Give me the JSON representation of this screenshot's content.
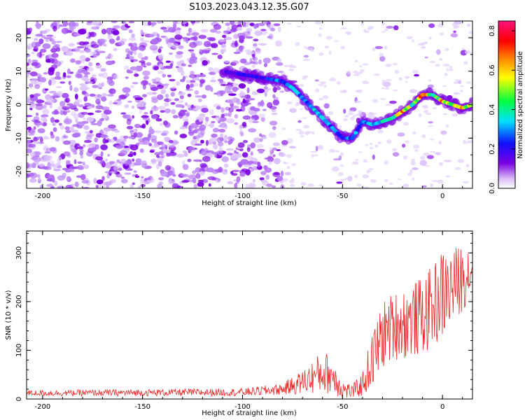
{
  "title": "S103.2023.043.12.35.G07",
  "chart_data": [
    {
      "type": "heatmap",
      "xlabel": "Height of straight line (km)",
      "ylabel": "Frequency (Hz)",
      "xlim": [
        -208,
        15
      ],
      "ylim": [
        -25,
        25
      ],
      "xticks": [
        -200,
        -150,
        -100,
        -50,
        0
      ],
      "xtick_labels": [
        "-200",
        "-150",
        "-100",
        "-50",
        "0"
      ],
      "yticks": [
        -20,
        -10,
        0,
        10,
        20
      ],
      "ytick_labels": [
        "-20",
        "-10",
        "0",
        "10",
        "20"
      ],
      "colorbar": {
        "label": "Normalized spectral amplitude",
        "range": [
          0,
          0.85
        ],
        "ticks": [
          0.0,
          0.2,
          0.4,
          0.6,
          0.8
        ],
        "tick_labels": [
          "0.0",
          "0.2",
          "0.4",
          "0.6",
          "0.8"
        ],
        "colormap": [
          "#ffffff",
          "#7a00e0",
          "#1010ff",
          "#00e0ff",
          "#00ff40",
          "#ffff00",
          "#ff8000",
          "#ff0000",
          "#ff1080"
        ]
      },
      "ridge": {
        "x": [
          -110,
          -100,
          -90,
          -80,
          -75,
          -70,
          -65,
          -60,
          -55,
          -50,
          -45,
          -40,
          -35,
          -30,
          -25,
          -20,
          -15,
          -10,
          -5,
          0,
          5,
          10,
          15
        ],
        "frequency": [
          10,
          9,
          8,
          7,
          5,
          2,
          -1,
          -4,
          -7,
          -10,
          -10,
          -5,
          -6,
          -5,
          -4,
          -2,
          0,
          3,
          3,
          1,
          0,
          -1,
          0
        ],
        "amplitude": [
          0.15,
          0.2,
          0.2,
          0.3,
          0.35,
          0.3,
          0.35,
          0.3,
          0.3,
          0.25,
          0.3,
          0.3,
          0.35,
          0.35,
          0.35,
          0.7,
          0.4,
          0.75,
          0.4,
          0.6,
          0.45,
          0.7,
          0.5
        ]
      },
      "grid": false
    },
    {
      "type": "line",
      "xlabel": "Height of straight line (km)",
      "ylabel": "SNR (10 * v/v)",
      "xlim": [
        -208,
        15
      ],
      "ylim": [
        0,
        345
      ],
      "xticks": [
        -200,
        -150,
        -100,
        -50,
        0
      ],
      "xtick_labels": [
        "-200",
        "-150",
        "-100",
        "-50",
        "0"
      ],
      "yticks": [
        0,
        100,
        200,
        300
      ],
      "ytick_labels": [
        "0",
        "100",
        "200",
        "300"
      ],
      "color": "#ee2222",
      "envelope": {
        "x": [
          -208,
          -150,
          -100,
          -80,
          -70,
          -60,
          -55,
          -50,
          -45,
          -40,
          -35,
          -30,
          -25,
          -20,
          -10,
          -5,
          0,
          5,
          10,
          15
        ],
        "mean": [
          12,
          13,
          14,
          20,
          35,
          55,
          50,
          20,
          15,
          30,
          80,
          130,
          150,
          155,
          170,
          190,
          215,
          230,
          250,
          270
        ],
        "spread": [
          6,
          7,
          8,
          12,
          25,
          45,
          40,
          20,
          15,
          25,
          60,
          70,
          70,
          75,
          80,
          85,
          95,
          80,
          70,
          55
        ]
      },
      "grid": false
    }
  ]
}
